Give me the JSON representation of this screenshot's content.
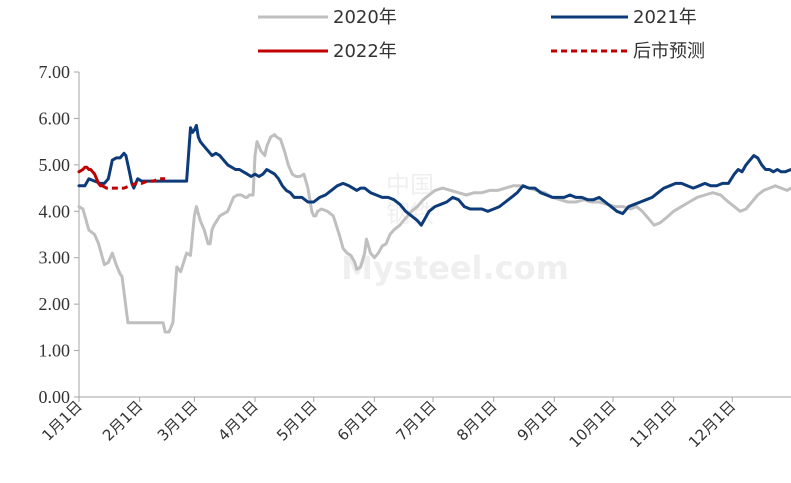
{
  "chart_data": {
    "type": "line",
    "title": "",
    "xlabel": "",
    "ylabel": "",
    "ylim": [
      0,
      7
    ],
    "yticks": [
      "0.00",
      "1.00",
      "2.00",
      "3.00",
      "4.00",
      "5.00",
      "6.00",
      "7.00"
    ],
    "xlim": [
      1,
      365
    ],
    "categories": [
      "1月1日",
      "2月1日",
      "3月1日",
      "4月1日",
      "5月1日",
      "6月1日",
      "7月1日",
      "8月1日",
      "9月1日",
      "10月1日",
      "11月1日",
      "12月1日"
    ],
    "category_day": [
      1,
      32,
      60,
      91,
      121,
      152,
      182,
      213,
      244,
      274,
      305,
      335
    ],
    "grid": false,
    "legend_position": "top",
    "series": [
      {
        "name": "2020年",
        "color": "#bfbfbf",
        "style": "solid",
        "x": [
          1,
          3,
          6,
          9,
          11,
          14,
          16,
          18,
          20,
          22,
          23,
          26,
          30,
          34,
          38,
          41,
          44,
          45,
          46,
          47,
          49,
          51,
          53,
          56,
          58,
          59,
          60,
          61,
          62,
          63,
          64,
          65,
          67,
          68,
          69,
          70,
          73,
          77,
          80,
          82,
          84,
          86,
          87,
          88,
          90,
          91,
          92,
          94,
          96,
          97,
          99,
          101,
          102,
          104,
          106,
          108,
          110,
          112,
          114,
          116,
          118,
          120,
          121,
          122,
          123,
          125,
          128,
          131,
          134,
          136,
          138,
          140,
          142,
          143,
          145,
          147,
          148,
          150,
          152,
          154,
          156,
          158,
          160,
          162,
          165,
          168,
          171,
          174,
          177,
          180,
          183,
          187,
          191,
          195,
          199,
          203,
          207,
          211,
          215,
          219,
          223,
          227,
          231,
          235,
          239,
          243,
          247,
          251,
          255,
          259,
          263,
          267,
          271,
          275,
          279,
          283,
          286,
          289,
          292,
          295,
          298,
          301,
          305,
          309,
          313,
          317,
          321,
          325,
          329,
          333,
          336,
          339,
          342,
          345,
          348,
          351,
          354,
          357,
          360,
          363,
          365
        ],
        "y": [
          4.1,
          4.05,
          3.6,
          3.5,
          3.3,
          2.85,
          2.9,
          3.1,
          2.85,
          2.65,
          2.6,
          1.6,
          1.6,
          1.6,
          1.6,
          1.6,
          1.6,
          1.4,
          1.4,
          1.4,
          1.6,
          2.8,
          2.7,
          3.1,
          3.05,
          3.5,
          3.9,
          4.1,
          3.95,
          3.8,
          3.7,
          3.6,
          3.3,
          3.3,
          3.6,
          3.7,
          3.9,
          4.0,
          4.3,
          4.35,
          4.35,
          4.3,
          4.3,
          4.35,
          4.35,
          5.2,
          5.5,
          5.3,
          5.2,
          5.4,
          5.6,
          5.65,
          5.6,
          5.55,
          5.3,
          5.0,
          4.8,
          4.75,
          4.75,
          4.8,
          4.5,
          4.0,
          3.9,
          3.9,
          4.0,
          4.05,
          4.0,
          3.9,
          3.5,
          3.2,
          3.1,
          3.05,
          2.9,
          2.75,
          2.8,
          3.1,
          3.4,
          3.1,
          3.0,
          3.1,
          3.25,
          3.3,
          3.5,
          3.6,
          3.7,
          3.85,
          4.0,
          4.1,
          4.25,
          4.35,
          4.45,
          4.5,
          4.45,
          4.4,
          4.35,
          4.4,
          4.4,
          4.45,
          4.45,
          4.5,
          4.55,
          4.55,
          4.5,
          4.45,
          4.4,
          4.3,
          4.25,
          4.2,
          4.2,
          4.25,
          4.2,
          4.2,
          4.15,
          4.1,
          4.1,
          4.05,
          4.1,
          4.0,
          3.85,
          3.7,
          3.75,
          3.85,
          4.0,
          4.1,
          4.2,
          4.3,
          4.35,
          4.4,
          4.35,
          4.2,
          4.1,
          4.0,
          4.05,
          4.2,
          4.35,
          4.45,
          4.5,
          4.55,
          4.5,
          4.45,
          4.5
        ]
      },
      {
        "name": "2021年",
        "color": "#0d3b7a",
        "style": "solid",
        "x": [
          1,
          4,
          6,
          9,
          12,
          14,
          16,
          18,
          20,
          22,
          24,
          25,
          27,
          28,
          29,
          30,
          31,
          33,
          35,
          37,
          39,
          41,
          44,
          47,
          50,
          53,
          56,
          58,
          59,
          60,
          61,
          62,
          63,
          64,
          65,
          66,
          67,
          69,
          71,
          73,
          75,
          77,
          79,
          81,
          83,
          85,
          87,
          89,
          91,
          93,
          95,
          97,
          99,
          101,
          103,
          105,
          107,
          109,
          111,
          113,
          115,
          118,
          121,
          124,
          127,
          130,
          133,
          136,
          139,
          141,
          143,
          145,
          147,
          150,
          153,
          156,
          159,
          162,
          165,
          168,
          171,
          174,
          176,
          178,
          180,
          183,
          186,
          189,
          192,
          195,
          198,
          201,
          204,
          207,
          210,
          213,
          216,
          219,
          222,
          225,
          228,
          231,
          234,
          237,
          240,
          243,
          246,
          249,
          252,
          255,
          258,
          261,
          264,
          267,
          270,
          273,
          276,
          279,
          282,
          285,
          288,
          291,
          294,
          297,
          300,
          303,
          306,
          309,
          312,
          315,
          318,
          321,
          324,
          327,
          330,
          333,
          336,
          338,
          340,
          342,
          344,
          346,
          348,
          350,
          352,
          354,
          356,
          358,
          360,
          362,
          365
        ],
        "y": [
          4.55,
          4.55,
          4.7,
          4.65,
          4.6,
          4.6,
          4.7,
          5.1,
          5.15,
          5.15,
          5.25,
          5.2,
          4.8,
          4.6,
          4.5,
          4.6,
          4.7,
          4.65,
          4.65,
          4.65,
          4.65,
          4.65,
          4.65,
          4.65,
          4.65,
          4.65,
          4.65,
          5.8,
          5.7,
          5.75,
          5.85,
          5.6,
          5.5,
          5.45,
          5.4,
          5.35,
          5.3,
          5.2,
          5.25,
          5.2,
          5.1,
          5.0,
          4.95,
          4.9,
          4.9,
          4.85,
          4.8,
          4.75,
          4.8,
          4.75,
          4.8,
          4.9,
          4.85,
          4.8,
          4.7,
          4.55,
          4.45,
          4.4,
          4.3,
          4.3,
          4.3,
          4.2,
          4.2,
          4.3,
          4.35,
          4.45,
          4.55,
          4.6,
          4.55,
          4.5,
          4.45,
          4.5,
          4.5,
          4.4,
          4.35,
          4.3,
          4.3,
          4.25,
          4.15,
          4.0,
          3.9,
          3.8,
          3.7,
          3.85,
          4.0,
          4.1,
          4.15,
          4.2,
          4.3,
          4.25,
          4.1,
          4.05,
          4.05,
          4.05,
          4.0,
          4.05,
          4.1,
          4.2,
          4.3,
          4.4,
          4.55,
          4.5,
          4.5,
          4.4,
          4.35,
          4.3,
          4.3,
          4.3,
          4.35,
          4.3,
          4.3,
          4.25,
          4.25,
          4.3,
          4.2,
          4.1,
          4.0,
          3.95,
          4.1,
          4.15,
          4.2,
          4.25,
          4.3,
          4.4,
          4.5,
          4.55,
          4.6,
          4.6,
          4.55,
          4.5,
          4.55,
          4.6,
          4.55,
          4.55,
          4.6,
          4.6,
          4.8,
          4.9,
          4.85,
          5.0,
          5.1,
          5.2,
          5.15,
          5.0,
          4.9,
          4.9,
          4.85,
          4.9,
          4.85,
          4.85,
          4.9
        ]
      },
      {
        "name": "2022年",
        "color": "#c00000",
        "style": "solid",
        "x": [
          1,
          3,
          4,
          5,
          6,
          7,
          8,
          9,
          10,
          11,
          12,
          13
        ],
        "y": [
          4.85,
          4.9,
          4.95,
          4.95,
          4.9,
          4.9,
          4.85,
          4.8,
          4.7,
          4.6,
          4.55,
          4.55
        ]
      },
      {
        "name": "后市预测",
        "color": "#c00000",
        "style": "dashed",
        "x": [
          13,
          15,
          18,
          21,
          24,
          27,
          30,
          33,
          36,
          39,
          42,
          45
        ],
        "y": [
          4.55,
          4.5,
          4.5,
          4.5,
          4.5,
          4.55,
          4.6,
          4.6,
          4.65,
          4.65,
          4.7,
          4.7
        ]
      }
    ]
  },
  "watermark": {
    "line1": "中国",
    "line2": "钢铁",
    "text": "Mysteel.com"
  }
}
